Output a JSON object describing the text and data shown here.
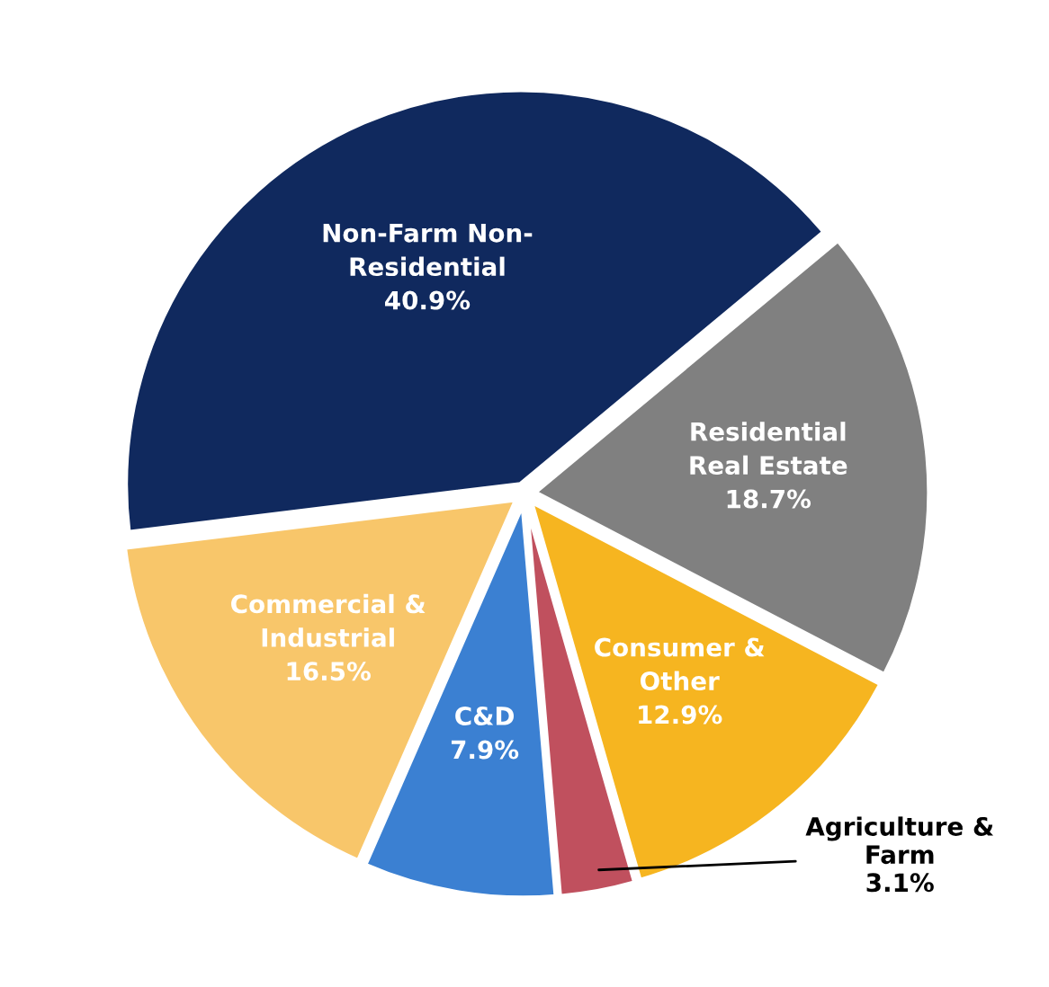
{
  "chart_data": {
    "type": "pie",
    "categories": [
      "Non-Farm Non-\nResidential",
      "Residential\nReal Estate",
      "Consumer &\nOther",
      "Agriculture &\nFarm",
      "C&D",
      "Commercial &\nIndustrial"
    ],
    "values": [
      40.9,
      18.7,
      12.9,
      3.1,
      7.9,
      16.5
    ],
    "value_labels": [
      "40.9%",
      "18.7%",
      "12.9%",
      "3.1%",
      "7.9%",
      "16.5%"
    ],
    "colors": [
      "#10295e",
      "#808080",
      "#f6b520",
      "#c0505e",
      "#3b80d2",
      "#f8c66a"
    ],
    "legend": false
  }
}
